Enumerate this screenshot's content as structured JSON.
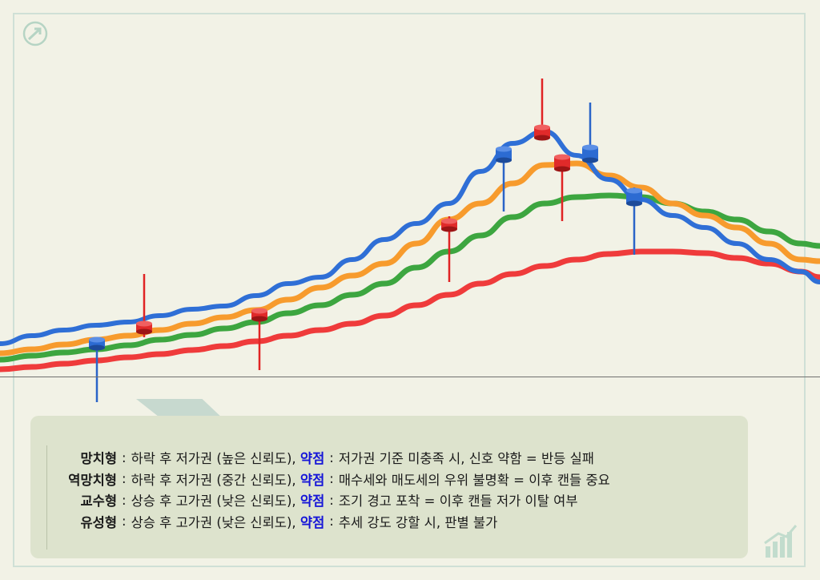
{
  "chart_data": {
    "type": "line",
    "title": "",
    "xlabel": "",
    "ylabel": "",
    "x": [
      0,
      40,
      80,
      120,
      160,
      200,
      240,
      280,
      320,
      360,
      400,
      440,
      480,
      520,
      560,
      600,
      640,
      680,
      720,
      760,
      800,
      840,
      880,
      920,
      960,
      1000,
      1024
    ],
    "ylim": [
      0,
      720
    ],
    "series": [
      {
        "color": "#2f6fd6",
        "values": [
          295,
          305,
          312,
          318,
          322,
          330,
          338,
          342,
          355,
          370,
          378,
          400,
          425,
          445,
          470,
          510,
          545,
          560,
          530,
          500,
          475,
          455,
          440,
          420,
          400,
          385,
          372
        ]
      },
      {
        "color": "#f79b2d",
        "values": [
          283,
          288,
          294,
          300,
          305,
          312,
          320,
          328,
          337,
          350,
          365,
          380,
          395,
          420,
          450,
          470,
          495,
          518,
          520,
          505,
          490,
          470,
          455,
          440,
          420,
          400,
          398
        ]
      },
      {
        "color": "#3da640",
        "values": [
          275,
          280,
          284,
          288,
          293,
          300,
          306,
          314,
          322,
          333,
          343,
          356,
          370,
          390,
          410,
          430,
          453,
          470,
          478,
          480,
          478,
          470,
          460,
          450,
          435,
          420,
          417
        ]
      },
      {
        "color": "#ef3b3b",
        "values": [
          263,
          266,
          270,
          274,
          278,
          282,
          287,
          292,
          298,
          305,
          312,
          320,
          330,
          343,
          356,
          370,
          382,
          392,
          400,
          407,
          410,
          410,
          408,
          402,
          395,
          385,
          378
        ]
      }
    ],
    "candles": [
      {
        "x": 121,
        "open": 300,
        "close": 290,
        "high": 302,
        "low": 222,
        "color": "blue"
      },
      {
        "x": 180,
        "open": 320,
        "close": 310,
        "high": 382,
        "low": 303,
        "color": "red"
      },
      {
        "x": 324,
        "open": 336,
        "close": 326,
        "high": 336,
        "low": 262,
        "color": "red"
      },
      {
        "x": 561,
        "open": 448,
        "close": 438,
        "high": 454,
        "low": 372,
        "color": "red"
      },
      {
        "x": 629,
        "open": 538,
        "close": 524,
        "high": 540,
        "low": 460,
        "color": "blue"
      },
      {
        "x": 677,
        "open": 565,
        "close": 552,
        "high": 626,
        "low": 550,
        "color": "red"
      },
      {
        "x": 702,
        "open": 528,
        "close": 513,
        "high": 530,
        "low": 448,
        "color": "red"
      },
      {
        "x": 737,
        "open": 540,
        "close": 524,
        "high": 596,
        "low": 518,
        "color": "blue"
      },
      {
        "x": 792,
        "open": 486,
        "close": 470,
        "high": 490,
        "low": 406,
        "color": "blue"
      }
    ]
  },
  "legend": [
    {
      "name": "망치형",
      "desc": "하락 후 저가권 (높은 신뢰도),",
      "weak_label": "약점",
      "weak_desc": "저가권 기준 미충족 시, 신호 약함 = 반등 실패"
    },
    {
      "name": "역망치형",
      "desc": "하락 후 저가권 (중간 신뢰도),",
      "weak_label": "약점",
      "weak_desc": "매수세와 매도세의 우위 불명확 = 이후 캔들 중요"
    },
    {
      "name": "교수형",
      "desc": "상승 후 고가권 (낮은 신뢰도),",
      "weak_label": "약점",
      "weak_desc": "조기 경고 포착 = 이후 캔들 저가 이탈 여부"
    },
    {
      "name": "유성형",
      "desc": "상승 후 고가권 (낮은 신뢰도),",
      "weak_label": "약점",
      "weak_desc": "추세 강도 강할 시, 판별 불가"
    }
  ],
  "icons": {
    "top_logo": "trend-arrow-icon",
    "bottom_logo": "bar-chart-icon"
  }
}
